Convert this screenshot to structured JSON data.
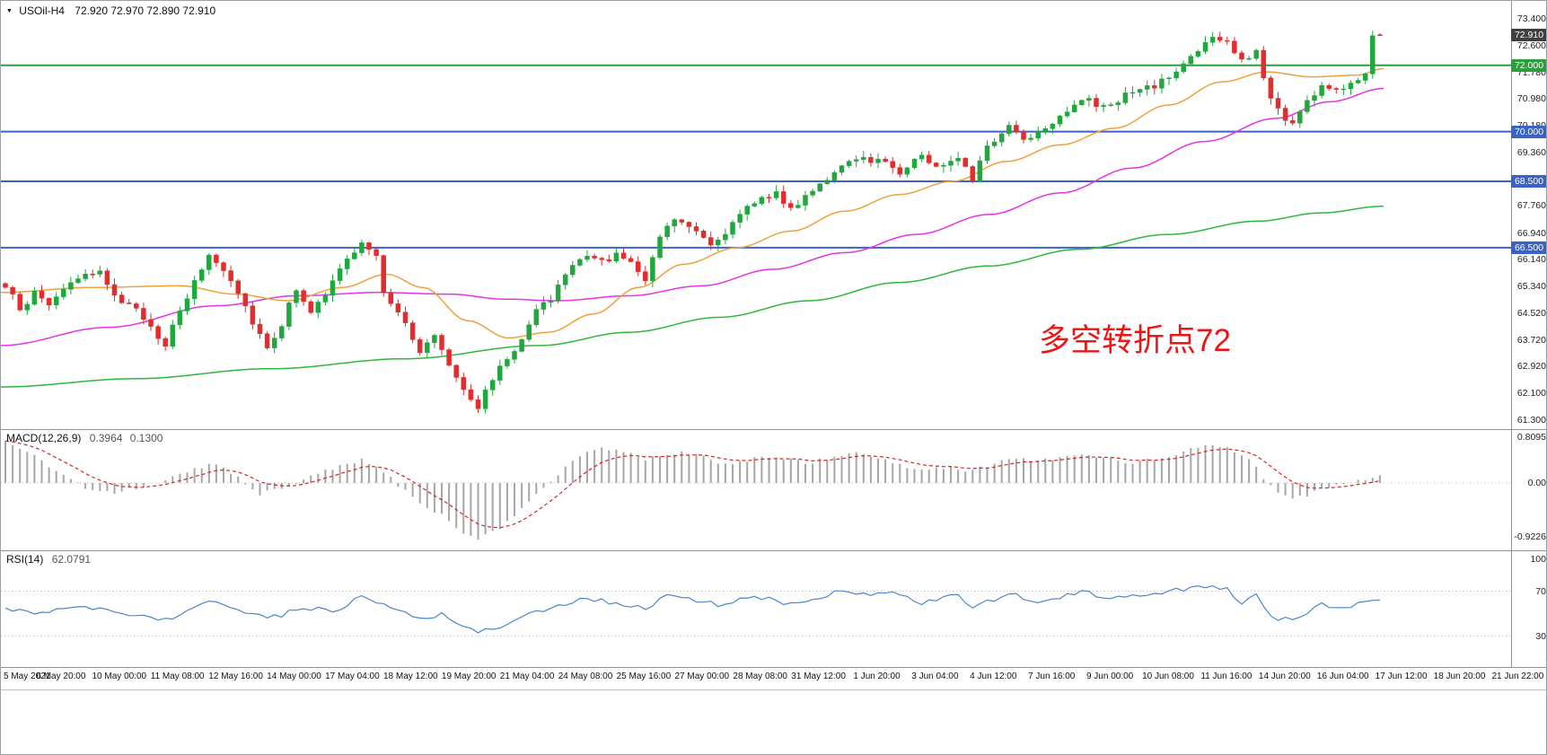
{
  "header": {
    "dropdown_icon": "▼",
    "symbol": "USOil-H4",
    "ohlc": "72.920 72.970 72.890 72.910"
  },
  "annotation": {
    "text": "多空转折点72",
    "color": "#ed1414"
  },
  "price_axis": {
    "labels": [
      "73.400",
      "72.600",
      "71.780",
      "70.980",
      "70.180",
      "69.360",
      "67.760",
      "66.940",
      "66.140",
      "65.340",
      "64.520",
      "63.720",
      "62.920",
      "62.100",
      "61.300"
    ],
    "badges": [
      {
        "text": "72.910",
        "type": "current",
        "color": "#404040"
      },
      {
        "text": "72.000",
        "type": "level",
        "color": "#2e9e3c"
      },
      {
        "text": "70.000",
        "type": "level",
        "color": "#3a63c8"
      },
      {
        "text": "68.500",
        "type": "level",
        "color": "#3a63c8"
      },
      {
        "text": "66.500",
        "type": "level",
        "color": "#3a63c8"
      }
    ]
  },
  "indicators": {
    "macd": {
      "label": "MACD(12,26,9)",
      "main_value": "0.3964",
      "signal_value": "0.1300",
      "axis_labels": [
        "0.8095",
        "0.00",
        "-0.9226"
      ]
    },
    "rsi": {
      "label": "RSI(14)",
      "value": "62.0791",
      "axis_labels": [
        "100",
        "70",
        "30"
      ],
      "levels": [
        70,
        30
      ]
    }
  },
  "chart_data": {
    "type": "candlestick",
    "title": "USOil-H4",
    "symbol": "USOil",
    "timeframe": "H4",
    "ylim": [
      61.3,
      73.4
    ],
    "num_candles": 190,
    "x_range": [
      "5 May 2021",
      "21 Jun 22:00"
    ],
    "x_tick_labels": [
      "5 May 2021",
      "6 May 20:00",
      "10 May 00:00",
      "11 May 08:00",
      "12 May 16:00",
      "14 May 00:00",
      "17 May 04:00",
      "18 May 12:00",
      "19 May 20:00",
      "21 May 04:00",
      "24 May 08:00",
      "25 May 16:00",
      "27 May 00:00",
      "28 May 08:00",
      "31 May 12:00",
      "1 Jun 20:00",
      "3 Jun 04:00",
      "4 Jun 12:00",
      "7 Jun 16:00",
      "9 Jun 00:00",
      "10 Jun 08:00",
      "11 Jun 16:00",
      "14 Jun 20:00",
      "16 Jun 04:00",
      "17 Jun 12:00",
      "18 Jun 20:00",
      "21 Jun 22:00"
    ],
    "bar_colors": {
      "up": "#21a73e",
      "down": "#e32c2c"
    },
    "last_candle": {
      "open": 72.92,
      "high": 72.97,
      "low": 72.89,
      "close": 72.91
    },
    "close_waypoints": [
      [
        0,
        65.3
      ],
      [
        2,
        64.7
      ],
      [
        4,
        65.1
      ],
      [
        6,
        64.8
      ],
      [
        9,
        65.5
      ],
      [
        13,
        65.7
      ],
      [
        16,
        64.9
      ],
      [
        19,
        64.4
      ],
      [
        22,
        63.6
      ],
      [
        25,
        65.0
      ],
      [
        28,
        66.3
      ],
      [
        31,
        65.6
      ],
      [
        34,
        64.3
      ],
      [
        36,
        63.5
      ],
      [
        38,
        64.2
      ],
      [
        40,
        65.3
      ],
      [
        42,
        64.6
      ],
      [
        44,
        65.0
      ],
      [
        46,
        65.9
      ],
      [
        49,
        66.6
      ],
      [
        51,
        66.2
      ],
      [
        52,
        65.2
      ],
      [
        54,
        64.6
      ],
      [
        57,
        63.3
      ],
      [
        59,
        63.9
      ],
      [
        61,
        63.0
      ],
      [
        63,
        62.3
      ],
      [
        65,
        61.7
      ],
      [
        67,
        62.6
      ],
      [
        70,
        63.4
      ],
      [
        73,
        64.7
      ],
      [
        75,
        64.9
      ],
      [
        77,
        65.7
      ],
      [
        79,
        66.2
      ],
      [
        82,
        66.1
      ],
      [
        84,
        66.3
      ],
      [
        86,
        66.0
      ],
      [
        88,
        65.6
      ],
      [
        90,
        66.9
      ],
      [
        92,
        67.4
      ],
      [
        95,
        67.1
      ],
      [
        97,
        66.6
      ],
      [
        100,
        67.2
      ],
      [
        103,
        67.9
      ],
      [
        106,
        68.2
      ],
      [
        108,
        67.6
      ],
      [
        111,
        68.3
      ],
      [
        115,
        68.9
      ],
      [
        118,
        69.2
      ],
      [
        121,
        69.1
      ],
      [
        123,
        68.8
      ],
      [
        126,
        69.3
      ],
      [
        128,
        68.9
      ],
      [
        131,
        69.3
      ],
      [
        133,
        68.6
      ],
      [
        135,
        69.5
      ],
      [
        138,
        70.2
      ],
      [
        140,
        69.8
      ],
      [
        142,
        70.0
      ],
      [
        145,
        70.5
      ],
      [
        148,
        71.0
      ],
      [
        151,
        70.7
      ],
      [
        154,
        71.1
      ],
      [
        157,
        71.3
      ],
      [
        159,
        71.5
      ],
      [
        161,
        71.8
      ],
      [
        164,
        72.5
      ],
      [
        166,
        72.8
      ],
      [
        168,
        72.7
      ],
      [
        170,
        72.1
      ],
      [
        172,
        72.4
      ],
      [
        174,
        71.0
      ],
      [
        176,
        70.4
      ],
      [
        177,
        70.3
      ],
      [
        179,
        70.9
      ],
      [
        181,
        71.4
      ],
      [
        183,
        71.2
      ],
      [
        185,
        71.5
      ],
      [
        187,
        71.8
      ],
      [
        188,
        72.9
      ],
      [
        189,
        72.91
      ]
    ],
    "horizontal_lines": [
      {
        "price": 72.0,
        "color": "#2e9e3c"
      },
      {
        "price": 70.0,
        "color": "#3a63c8"
      },
      {
        "price": 68.5,
        "color": "#3a63c8"
      },
      {
        "price": 66.5,
        "color": "#3a63c8"
      }
    ],
    "moving_averages": [
      {
        "name": "slow-green",
        "color": "#2db83d",
        "points": [
          [
            0,
            62.3
          ],
          [
            150,
            62.55
          ],
          [
            300,
            62.85
          ],
          [
            450,
            63.15
          ],
          [
            600,
            63.55
          ],
          [
            700,
            63.95
          ],
          [
            800,
            64.4
          ],
          [
            900,
            64.9
          ],
          [
            1000,
            65.45
          ],
          [
            1100,
            65.95
          ],
          [
            1200,
            66.45
          ],
          [
            1300,
            66.9
          ],
          [
            1400,
            67.3
          ],
          [
            1470,
            67.55
          ],
          [
            1540,
            67.75
          ]
        ]
      },
      {
        "name": "medium-magenta",
        "color": "#e533e5",
        "points": [
          [
            0,
            63.55
          ],
          [
            120,
            64.1
          ],
          [
            240,
            64.75
          ],
          [
            330,
            65.05
          ],
          [
            420,
            65.15
          ],
          [
            500,
            65.1
          ],
          [
            560,
            64.95
          ],
          [
            620,
            64.9
          ],
          [
            700,
            65.05
          ],
          [
            780,
            65.35
          ],
          [
            860,
            65.85
          ],
          [
            940,
            66.35
          ],
          [
            1020,
            66.9
          ],
          [
            1100,
            67.5
          ],
          [
            1180,
            68.15
          ],
          [
            1260,
            68.9
          ],
          [
            1340,
            69.7
          ],
          [
            1420,
            70.4
          ],
          [
            1480,
            70.9
          ],
          [
            1540,
            71.3
          ]
        ]
      },
      {
        "name": "fast-orange",
        "color": "#f0a13c",
        "points": [
          [
            0,
            65.15
          ],
          [
            100,
            65.3
          ],
          [
            200,
            65.35
          ],
          [
            260,
            65.1
          ],
          [
            320,
            64.9
          ],
          [
            380,
            65.3
          ],
          [
            430,
            65.7
          ],
          [
            470,
            65.3
          ],
          [
            520,
            64.3
          ],
          [
            565,
            63.78
          ],
          [
            610,
            63.95
          ],
          [
            660,
            64.5
          ],
          [
            710,
            65.3
          ],
          [
            760,
            66.0
          ],
          [
            820,
            66.5
          ],
          [
            880,
            67.0
          ],
          [
            940,
            67.6
          ],
          [
            1000,
            68.1
          ],
          [
            1060,
            68.5
          ],
          [
            1120,
            69.1
          ],
          [
            1180,
            69.6
          ],
          [
            1240,
            70.1
          ],
          [
            1300,
            70.8
          ],
          [
            1360,
            71.5
          ],
          [
            1410,
            71.8
          ],
          [
            1460,
            71.65
          ],
          [
            1510,
            71.7
          ],
          [
            1540,
            71.9
          ]
        ]
      }
    ],
    "macd": {
      "ylim": [
        -0.9226,
        0.8095
      ],
      "main_value": 0.3964,
      "signal_value": 0.13,
      "histogram_color": "#a6a6a6",
      "signal_color": "#cf2626",
      "histogram_waypoints": [
        [
          0,
          0.72
        ],
        [
          4,
          0.45
        ],
        [
          8,
          0.12
        ],
        [
          11,
          -0.1
        ],
        [
          15,
          -0.18
        ],
        [
          19,
          -0.05
        ],
        [
          22,
          0.05
        ],
        [
          26,
          0.25
        ],
        [
          29,
          0.33
        ],
        [
          32,
          0.1
        ],
        [
          35,
          -0.18
        ],
        [
          39,
          -0.05
        ],
        [
          43,
          0.15
        ],
        [
          46,
          0.3
        ],
        [
          49,
          0.4
        ],
        [
          52,
          0.18
        ],
        [
          56,
          -0.25
        ],
        [
          60,
          -0.55
        ],
        [
          63,
          -0.85
        ],
        [
          65,
          -0.95
        ],
        [
          68,
          -0.8
        ],
        [
          71,
          -0.45
        ],
        [
          74,
          -0.1
        ],
        [
          77,
          0.25
        ],
        [
          79,
          0.48
        ],
        [
          82,
          0.58
        ],
        [
          85,
          0.55
        ],
        [
          88,
          0.42
        ],
        [
          90,
          0.45
        ],
        [
          93,
          0.52
        ],
        [
          96,
          0.44
        ],
        [
          99,
          0.32
        ],
        [
          102,
          0.38
        ],
        [
          104,
          0.48
        ],
        [
          107,
          0.42
        ],
        [
          110,
          0.34
        ],
        [
          113,
          0.42
        ],
        [
          116,
          0.52
        ],
        [
          118,
          0.5
        ],
        [
          121,
          0.38
        ],
        [
          124,
          0.28
        ],
        [
          127,
          0.22
        ],
        [
          130,
          0.28
        ],
        [
          132,
          0.2
        ],
        [
          135,
          0.28
        ],
        [
          138,
          0.42
        ],
        [
          141,
          0.38
        ],
        [
          144,
          0.4
        ],
        [
          146,
          0.46
        ],
        [
          149,
          0.5
        ],
        [
          152,
          0.4
        ],
        [
          155,
          0.34
        ],
        [
          157,
          0.38
        ],
        [
          160,
          0.46
        ],
        [
          163,
          0.6
        ],
        [
          166,
          0.68
        ],
        [
          169,
          0.55
        ],
        [
          171,
          0.4
        ],
        [
          173,
          0.1
        ],
        [
          175,
          -0.15
        ],
        [
          177,
          -0.28
        ],
        [
          179,
          -0.22
        ],
        [
          181,
          -0.1
        ],
        [
          183,
          -0.05
        ],
        [
          185,
          0.02
        ],
        [
          187,
          0.06
        ],
        [
          189,
          0.13
        ]
      ]
    },
    "rsi": {
      "ylim": [
        0,
        100
      ],
      "last_value": 62.0791,
      "line_color": "#4a86c8",
      "waypoints": [
        [
          0,
          55
        ],
        [
          5,
          50
        ],
        [
          9,
          57
        ],
        [
          14,
          52
        ],
        [
          22,
          44
        ],
        [
          28,
          62
        ],
        [
          36,
          45
        ],
        [
          41,
          55
        ],
        [
          45,
          52
        ],
        [
          49,
          65
        ],
        [
          52,
          58
        ],
        [
          57,
          45
        ],
        [
          60,
          50
        ],
        [
          65,
          33
        ],
        [
          69,
          40
        ],
        [
          73,
          52
        ],
        [
          79,
          63
        ],
        [
          84,
          60
        ],
        [
          88,
          55
        ],
        [
          91,
          66
        ],
        [
          98,
          58
        ],
        [
          103,
          66
        ],
        [
          108,
          58
        ],
        [
          115,
          70
        ],
        [
          118,
          67
        ],
        [
          121,
          70
        ],
        [
          126,
          60
        ],
        [
          131,
          67
        ],
        [
          133,
          55
        ],
        [
          138,
          68
        ],
        [
          142,
          60
        ],
        [
          148,
          70
        ],
        [
          152,
          64
        ],
        [
          155,
          66
        ],
        [
          159,
          69
        ],
        [
          164,
          74
        ],
        [
          168,
          72
        ],
        [
          170,
          60
        ],
        [
          172,
          68
        ],
        [
          174,
          47
        ],
        [
          177,
          44
        ],
        [
          181,
          58
        ],
        [
          184,
          54
        ],
        [
          187,
          60
        ],
        [
          189,
          62.08
        ]
      ]
    }
  }
}
